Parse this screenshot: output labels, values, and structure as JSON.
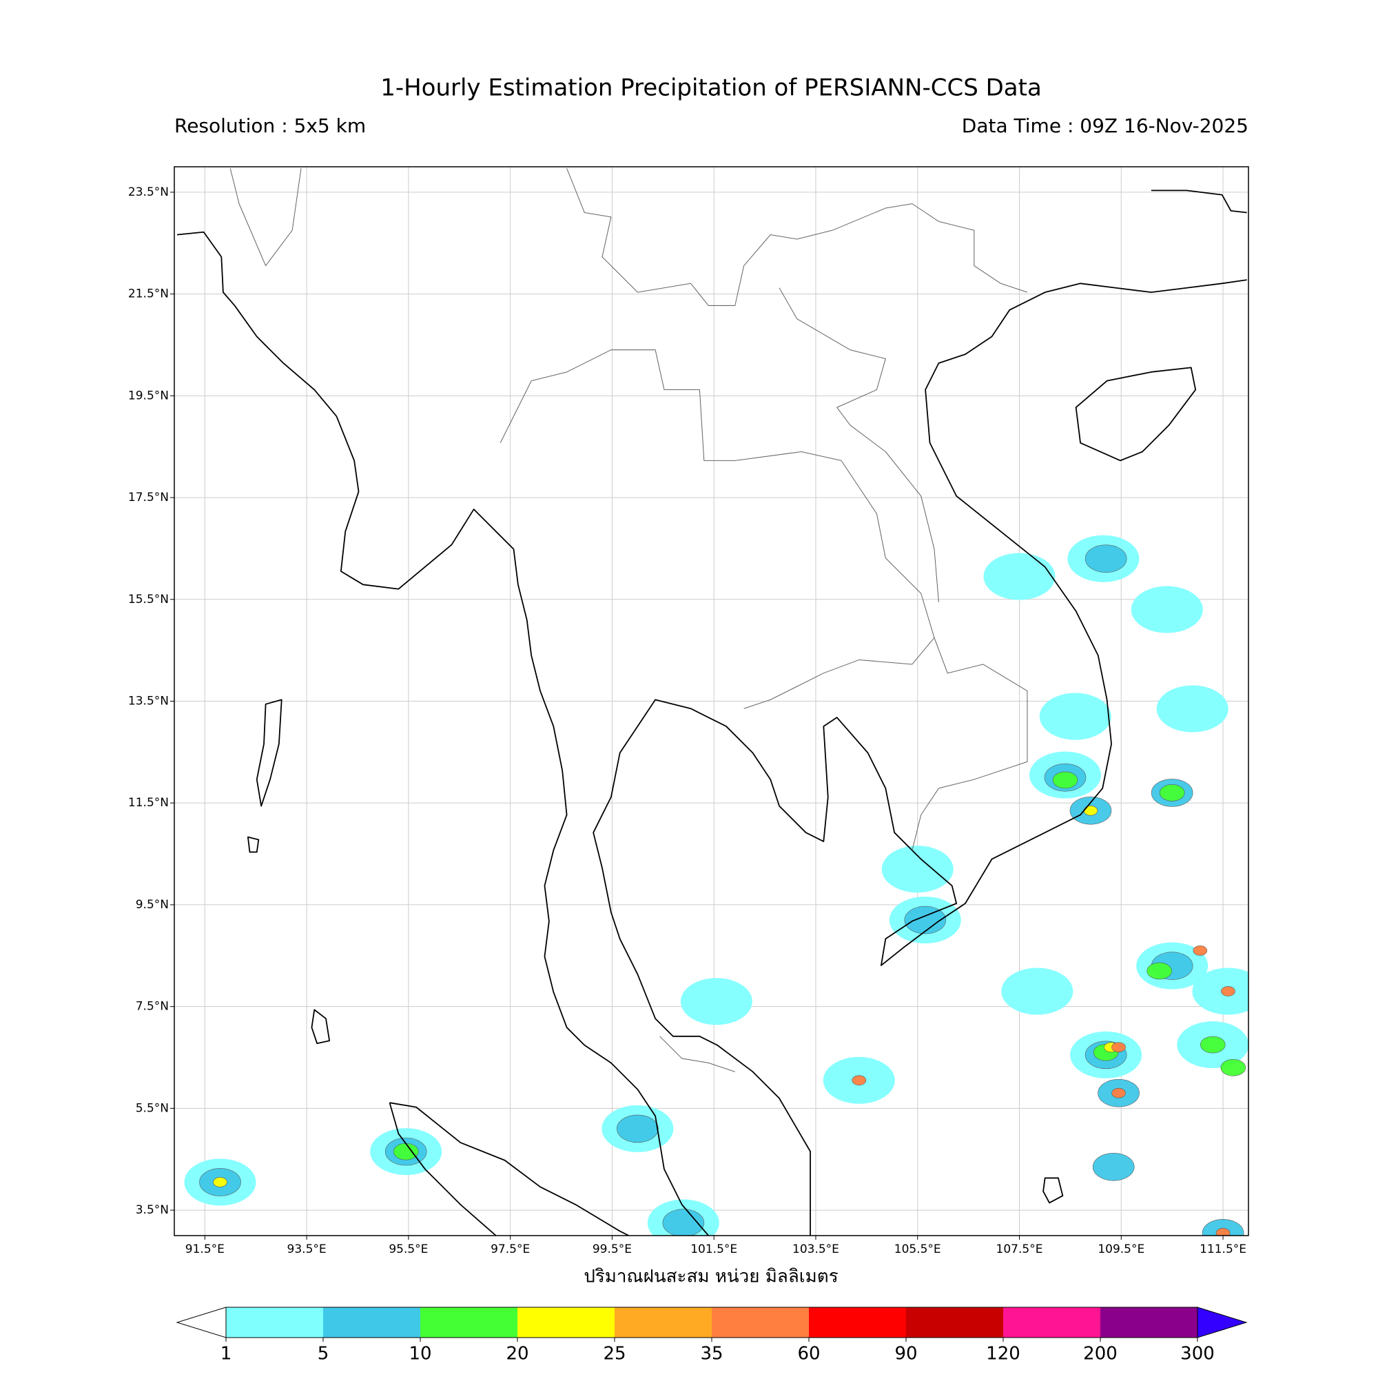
{
  "chart_data": {
    "type": "precipitation-map",
    "title": "1-Hourly Estimation Precipitation of PERSIANN-CCS Data",
    "subtitle_left": "Resolution : 5x5 km",
    "subtitle_right": "Data Time : 09Z 16-Nov-2025",
    "xlabel": "ปริมาณฝนสะสม หน่วย มิลลิเมตร",
    "xlim": [
      90.9,
      112.0
    ],
    "ylim": [
      3.0,
      24.0
    ],
    "grid": true,
    "xticks": [
      {
        "value": 91.5,
        "label": "91.5°E"
      },
      {
        "value": 93.5,
        "label": "93.5°E"
      },
      {
        "value": 95.5,
        "label": "95.5°E"
      },
      {
        "value": 97.5,
        "label": "97.5°E"
      },
      {
        "value": 99.5,
        "label": "99.5°E"
      },
      {
        "value": 101.5,
        "label": "101.5°E"
      },
      {
        "value": 103.5,
        "label": "103.5°E"
      },
      {
        "value": 105.5,
        "label": "105.5°E"
      },
      {
        "value": 107.5,
        "label": "107.5°E"
      },
      {
        "value": 109.5,
        "label": "109.5°E"
      },
      {
        "value": 111.5,
        "label": "111.5°E"
      }
    ],
    "yticks": [
      {
        "value": 3.5,
        "label": "3.5°N"
      },
      {
        "value": 5.5,
        "label": "5.5°N"
      },
      {
        "value": 7.5,
        "label": "7.5°N"
      },
      {
        "value": 9.5,
        "label": "9.5°N"
      },
      {
        "value": 11.5,
        "label": "11.5°N"
      },
      {
        "value": 13.5,
        "label": "13.5°N"
      },
      {
        "value": 15.5,
        "label": "15.5°N"
      },
      {
        "value": 17.5,
        "label": "17.5°N"
      },
      {
        "value": 19.5,
        "label": "19.5°N"
      },
      {
        "value": 21.5,
        "label": "21.5°N"
      },
      {
        "value": 23.5,
        "label": "23.5°N"
      }
    ],
    "levels": [
      1,
      5,
      10,
      20,
      25,
      35,
      60,
      90,
      120,
      200,
      300
    ],
    "colors": [
      "#80ffff",
      "#40c8e8",
      "#44ff33",
      "#ffff00",
      "#ffaa22",
      "#ff7f40",
      "#ff0000",
      "#c80000",
      "#ff1493",
      "#8b008b"
    ],
    "under_color": "#ffffff",
    "over_color": "#3300ff",
    "rain_cells": [
      {
        "lon": 109.15,
        "lat": 16.3,
        "mm": 3
      },
      {
        "lon": 109.2,
        "lat": 16.3,
        "mm": 7
      },
      {
        "lon": 110.4,
        "lat": 15.3,
        "mm": 3
      },
      {
        "lon": 108.6,
        "lat": 13.2,
        "mm": 3
      },
      {
        "lon": 108.4,
        "lat": 12.05,
        "mm": 3
      },
      {
        "lon": 108.4,
        "lat": 12.0,
        "mm": 8
      },
      {
        "lon": 108.4,
        "lat": 11.95,
        "mm": 12
      },
      {
        "lon": 108.9,
        "lat": 11.35,
        "mm": 8
      },
      {
        "lon": 108.9,
        "lat": 11.35,
        "mm": 22
      },
      {
        "lon": 110.5,
        "lat": 8.3,
        "mm": 3
      },
      {
        "lon": 110.5,
        "lat": 8.3,
        "mm": 8
      },
      {
        "lon": 110.25,
        "lat": 8.2,
        "mm": 15
      },
      {
        "lon": 111.05,
        "lat": 8.6,
        "mm": 40
      },
      {
        "lon": 111.6,
        "lat": 7.8,
        "mm": 3
      },
      {
        "lon": 111.6,
        "lat": 7.8,
        "mm": 45
      },
      {
        "lon": 109.2,
        "lat": 6.55,
        "mm": 3
      },
      {
        "lon": 109.2,
        "lat": 6.55,
        "mm": 8
      },
      {
        "lon": 109.2,
        "lat": 6.6,
        "mm": 15
      },
      {
        "lon": 109.3,
        "lat": 6.7,
        "mm": 22
      },
      {
        "lon": 109.45,
        "lat": 6.7,
        "mm": 40
      },
      {
        "lon": 111.3,
        "lat": 6.75,
        "mm": 3
      },
      {
        "lon": 111.3,
        "lat": 6.75,
        "mm": 15
      },
      {
        "lon": 109.45,
        "lat": 5.8,
        "mm": 8
      },
      {
        "lon": 109.45,
        "lat": 5.8,
        "mm": 40
      },
      {
        "lon": 111.7,
        "lat": 6.3,
        "mm": 15
      },
      {
        "lon": 105.65,
        "lat": 9.2,
        "mm": 3
      },
      {
        "lon": 105.65,
        "lat": 9.2,
        "mm": 7
      },
      {
        "lon": 105.5,
        "lat": 10.2,
        "mm": 3
      },
      {
        "lon": 104.35,
        "lat": 6.05,
        "mm": 3
      },
      {
        "lon": 104.35,
        "lat": 6.05,
        "mm": 40
      },
      {
        "lon": 95.45,
        "lat": 4.65,
        "mm": 3
      },
      {
        "lon": 95.45,
        "lat": 4.65,
        "mm": 8
      },
      {
        "lon": 95.45,
        "lat": 4.65,
        "mm": 12
      },
      {
        "lon": 100.0,
        "lat": 5.1,
        "mm": 3
      },
      {
        "lon": 100.0,
        "lat": 5.1,
        "mm": 7
      },
      {
        "lon": 100.9,
        "lat": 3.25,
        "mm": 3
      },
      {
        "lon": 100.9,
        "lat": 3.25,
        "mm": 7
      },
      {
        "lon": 91.8,
        "lat": 4.05,
        "mm": 3
      },
      {
        "lon": 91.8,
        "lat": 4.05,
        "mm": 7
      },
      {
        "lon": 91.8,
        "lat": 4.05,
        "mm": 22
      },
      {
        "lon": 107.5,
        "lat": 15.95,
        "mm": 3
      },
      {
        "lon": 110.9,
        "lat": 13.35,
        "mm": 3
      },
      {
        "lon": 110.5,
        "lat": 11.7,
        "mm": 8
      },
      {
        "lon": 110.5,
        "lat": 11.7,
        "mm": 12
      },
      {
        "lon": 109.35,
        "lat": 4.35,
        "mm": 7
      },
      {
        "lon": 111.5,
        "lat": 3.05,
        "mm": 7
      },
      {
        "lon": 111.5,
        "lat": 3.05,
        "mm": 40
      },
      {
        "lon": 101.55,
        "lat": 7.6,
        "mm": 3
      },
      {
        "lon": 107.85,
        "lat": 7.8,
        "mm": 3
      }
    ]
  }
}
